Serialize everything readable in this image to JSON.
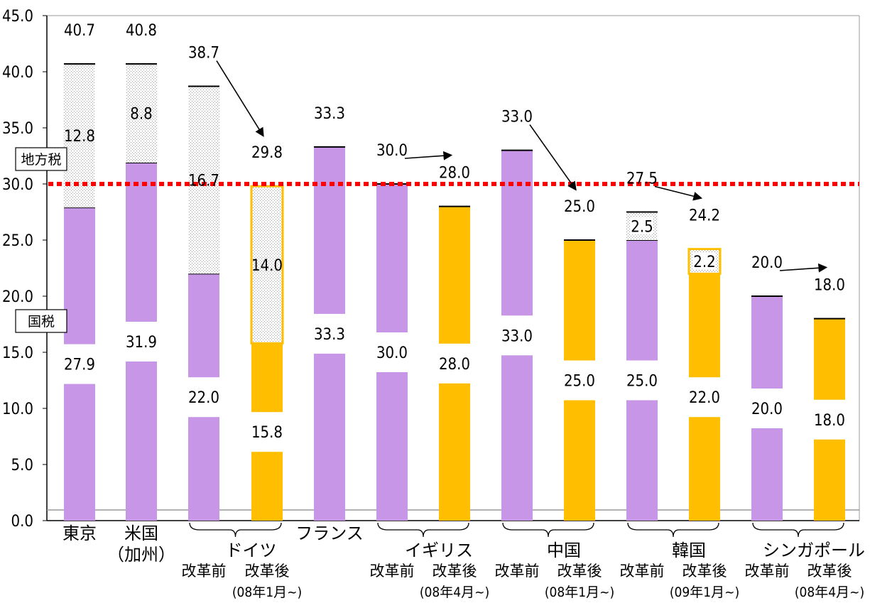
{
  "chart_data": {
    "type": "bar",
    "stacked": true,
    "ylim": [
      0,
      45
    ],
    "yticks": [
      "0.0",
      "5.0",
      "10.0",
      "15.0",
      "20.0",
      "25.0",
      "30.0",
      "35.0",
      "40.0",
      "45.0"
    ],
    "reference_line": {
      "value": 30,
      "color": "#ff0000",
      "style": "dotted"
    },
    "side_labels": {
      "local": "地方税",
      "national": "国税"
    },
    "colors": {
      "before_reform": "#c896e6",
      "after_reform": "#ffbf00",
      "local_hatch": "#d9d9d9",
      "after_outline": "#ffbf00"
    },
    "bars": [
      {
        "national": 27.9,
        "local": 12.8,
        "total": "40.7",
        "national_label": "27.9",
        "local_label": "12.8",
        "group": "before"
      },
      {
        "national": 31.9,
        "local": 8.8,
        "total": "40.8",
        "national_label": "31.9",
        "local_label": "8.8",
        "group": "before"
      },
      {
        "national": 22.0,
        "local": 16.7,
        "total": "38.7",
        "national_label": "22.0",
        "local_label": "16.7",
        "group": "before"
      },
      {
        "national": 15.8,
        "local": 14.0,
        "total": "29.8",
        "national_label": "15.8",
        "local_label": "14.0",
        "group": "after"
      },
      {
        "national": 33.3,
        "local": 0,
        "total": "33.3",
        "national_label": "33.3",
        "local_label": "",
        "group": "before"
      },
      {
        "national": 30.0,
        "local": 0,
        "total": "30.0",
        "national_label": "30.0",
        "local_label": "",
        "group": "before"
      },
      {
        "national": 28.0,
        "local": 0,
        "total": "28.0",
        "national_label": "28.0",
        "local_label": "",
        "group": "after"
      },
      {
        "national": 33.0,
        "local": 0,
        "total": "33.0",
        "national_label": "33.0",
        "local_label": "",
        "group": "before"
      },
      {
        "national": 25.0,
        "local": 0,
        "total": "25.0",
        "national_label": "25.0",
        "local_label": "",
        "group": "after"
      },
      {
        "national": 25.0,
        "local": 2.5,
        "total": "27.5",
        "national_label": "25.0",
        "local_label": "2.5",
        "group": "before"
      },
      {
        "national": 22.0,
        "local": 2.2,
        "total": "24.2",
        "national_label": "22.0",
        "local_label": "2.2",
        "group": "after"
      },
      {
        "national": 20.0,
        "local": 0,
        "total": "20.0",
        "national_label": "20.0",
        "local_label": "",
        "group": "before"
      },
      {
        "national": 18.0,
        "local": 0,
        "total": "18.0",
        "national_label": "18.0",
        "local_label": "",
        "group": "after"
      }
    ],
    "categories": [
      {
        "name": "東京",
        "sub": "",
        "bars": [
          0
        ]
      },
      {
        "name": "米国",
        "sub": "（加州）",
        "bars": [
          1
        ]
      },
      {
        "name": "ドイツ",
        "sub": "",
        "bars": [
          2,
          3
        ]
      },
      {
        "name": "フランス",
        "sub": "",
        "bars": [
          4
        ]
      },
      {
        "name": "イギリス",
        "sub": "",
        "bars": [
          5,
          6
        ]
      },
      {
        "name": "中国",
        "sub": "",
        "bars": [
          7,
          8
        ]
      },
      {
        "name": "韓国",
        "sub": "",
        "bars": [
          9,
          10
        ]
      },
      {
        "name": "シンガポール",
        "sub": "",
        "bars": [
          11,
          12
        ]
      }
    ],
    "reform_labels": {
      "before": "改革前",
      "after": "改革後"
    },
    "reform_dates": [
      "(08年1月~)",
      "(08年4月~)",
      "(08年1月~)",
      "(09年1月~)",
      "(08年4月~)"
    ],
    "arrows": [
      [
        2,
        3
      ],
      [
        5,
        6
      ],
      [
        7,
        8
      ],
      [
        9,
        10
      ],
      [
        11,
        12
      ]
    ]
  }
}
